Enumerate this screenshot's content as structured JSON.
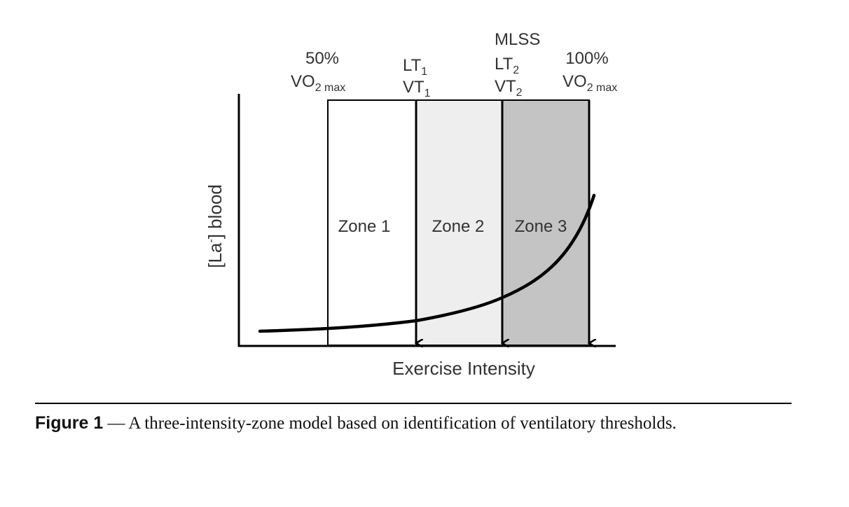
{
  "figure": {
    "zones": [
      {
        "label": "Zone 1",
        "fill": "#ffffff"
      },
      {
        "label": "Zone 2",
        "fill": "#eeeeee"
      },
      {
        "label": "Zone 3",
        "fill": "#c4c4c4"
      }
    ],
    "thresholds": {
      "vo2_50": {
        "pct": "50%",
        "base": "VO",
        "sub": "2 max"
      },
      "lt1": {
        "line1_base": "LT",
        "line1_sub": "1",
        "line2_base": "VT",
        "line2_sub": "1"
      },
      "lt2": {
        "top": "MLSS",
        "line1_base": "LT",
        "line1_sub": "2",
        "line2_base": "VT",
        "line2_sub": "2"
      },
      "vo2_100": {
        "pct": "100%",
        "base": "VO",
        "sub": "2 max"
      }
    },
    "y_axis": {
      "prefix": "[La",
      "sup": "-",
      "suffix": "] blood"
    },
    "x_axis": {
      "label": "Exercise Intensity"
    },
    "colors": {
      "line": "#000000",
      "zone1": "#ffffff",
      "zone2": "#eeeeee",
      "zone3": "#c4c4c4"
    }
  },
  "caption": {
    "label": "Figure 1",
    "text": " — A three-intensity-zone model based on identification of ventilatory thresholds."
  }
}
